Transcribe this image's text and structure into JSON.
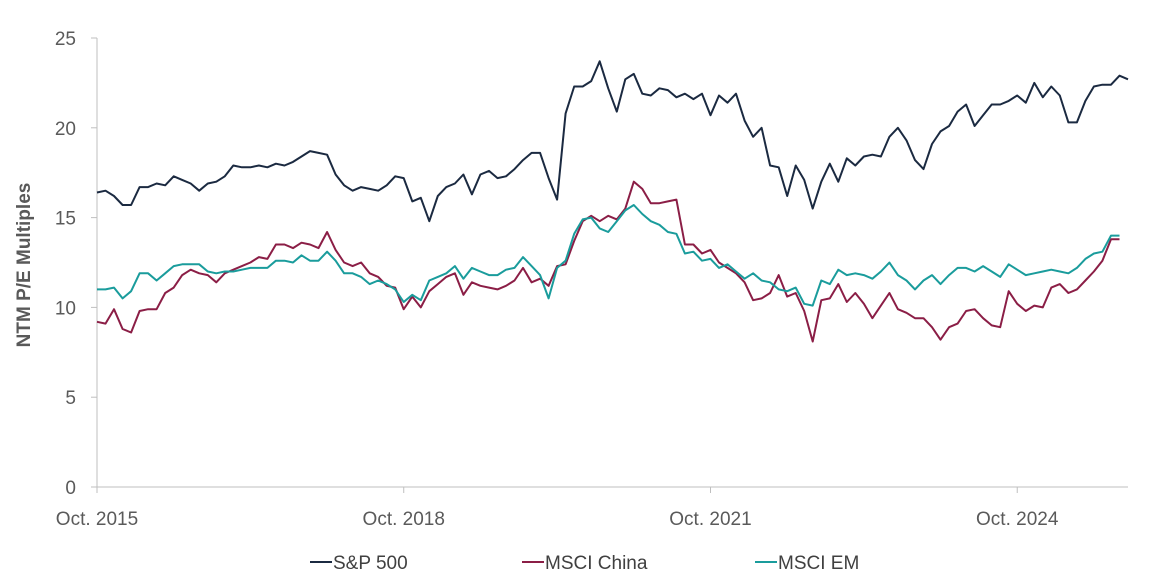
{
  "chart_data": {
    "type": "line",
    "ylabel": "NTM P/E Multiples",
    "xlabel": "",
    "ylim": [
      0,
      25
    ],
    "yticks": [
      0,
      5,
      10,
      15,
      20,
      25
    ],
    "x_start": "Oct. 2015",
    "x_end": "Apr. 2025",
    "xtick_labels": [
      "Oct. 2015",
      "Oct. 2018",
      "Oct. 2021",
      "Oct. 2024"
    ],
    "legend_position": "bottom-center",
    "grid": false,
    "series": [
      {
        "name": "S&P 500",
        "color": "#1b2a41",
        "values": [
          16.4,
          16.5,
          16.2,
          15.7,
          15.7,
          16.7,
          16.7,
          16.9,
          16.8,
          17.3,
          17.1,
          16.9,
          16.5,
          16.9,
          17.0,
          17.3,
          17.9,
          17.8,
          17.8,
          17.9,
          17.8,
          18.0,
          17.9,
          18.1,
          18.4,
          18.7,
          18.6,
          18.5,
          17.4,
          16.8,
          16.5,
          16.7,
          16.6,
          16.5,
          16.8,
          17.3,
          17.2,
          15.9,
          16.1,
          14.8,
          16.2,
          16.7,
          16.9,
          17.4,
          16.3,
          17.4,
          17.6,
          17.2,
          17.3,
          17.7,
          18.2,
          18.6,
          18.6,
          17.2,
          16.0,
          20.8,
          22.3,
          22.3,
          22.6,
          23.7,
          22.2,
          20.9,
          22.7,
          23.0,
          21.9,
          21.8,
          22.2,
          22.1,
          21.7,
          21.9,
          21.6,
          21.9,
          20.7,
          21.8,
          21.4,
          21.9,
          20.4,
          19.5,
          20.0,
          17.9,
          17.8,
          16.2,
          17.9,
          17.1,
          15.5,
          17.0,
          18.0,
          17.0,
          18.3,
          17.9,
          18.4,
          18.5,
          18.4,
          19.5,
          20.0,
          19.3,
          18.2,
          17.7,
          19.1,
          19.8,
          20.1,
          20.9,
          21.3,
          20.1,
          20.7,
          21.3,
          21.3,
          21.5,
          21.8,
          21.4,
          22.5,
          21.7,
          22.3,
          21.8,
          20.3,
          20.3,
          21.5,
          22.3,
          22.4,
          22.4,
          22.9,
          22.7
        ]
      },
      {
        "name": "MSCI China",
        "color": "#8b1e46",
        "values": [
          9.2,
          9.1,
          9.9,
          8.8,
          8.6,
          9.8,
          9.9,
          9.9,
          10.8,
          11.1,
          11.8,
          12.1,
          11.9,
          11.8,
          11.4,
          11.9,
          12.1,
          12.3,
          12.5,
          12.8,
          12.7,
          13.5,
          13.5,
          13.3,
          13.6,
          13.5,
          13.3,
          14.2,
          13.2,
          12.5,
          12.3,
          12.5,
          11.9,
          11.7,
          11.2,
          11.1,
          9.9,
          10.6,
          10.0,
          10.9,
          11.3,
          11.7,
          11.9,
          10.7,
          11.4,
          11.2,
          11.1,
          11.0,
          11.2,
          11.5,
          12.2,
          11.4,
          11.6,
          11.2,
          12.3,
          12.4,
          13.7,
          14.8,
          15.1,
          14.8,
          15.1,
          14.9,
          15.5,
          17.0,
          16.6,
          15.8,
          15.8,
          15.9,
          16.0,
          13.5,
          13.5,
          13.0,
          13.2,
          12.5,
          12.2,
          11.9,
          11.4,
          10.4,
          10.5,
          10.8,
          11.8,
          10.6,
          10.8,
          9.8,
          8.1,
          10.4,
          10.5,
          11.3,
          10.3,
          10.8,
          10.2,
          9.4,
          10.1,
          10.8,
          9.9,
          9.7,
          9.4,
          9.4,
          8.9,
          8.2,
          8.9,
          9.1,
          9.8,
          9.9,
          9.4,
          9.0,
          8.9,
          10.9,
          10.2,
          9.8,
          10.1,
          10.0,
          11.1,
          11.3,
          10.8,
          11.0,
          11.5,
          12.0,
          12.6,
          13.8,
          13.8
        ]
      },
      {
        "name": "MSCI EM",
        "color": "#1a9c9c",
        "values": [
          11.0,
          11.0,
          11.1,
          10.5,
          10.9,
          11.9,
          11.9,
          11.5,
          11.9,
          12.3,
          12.4,
          12.4,
          12.4,
          12.0,
          11.9,
          12.0,
          12.0,
          12.1,
          12.2,
          12.2,
          12.2,
          12.6,
          12.6,
          12.5,
          12.9,
          12.6,
          12.6,
          13.1,
          12.6,
          11.9,
          11.9,
          11.7,
          11.3,
          11.5,
          11.3,
          11.0,
          10.3,
          10.7,
          10.4,
          11.5,
          11.7,
          11.9,
          12.3,
          11.6,
          12.2,
          12.0,
          11.8,
          11.8,
          12.1,
          12.2,
          12.8,
          12.3,
          11.8,
          10.5,
          12.2,
          12.6,
          14.1,
          14.9,
          15.0,
          14.4,
          14.2,
          14.8,
          15.4,
          15.7,
          15.2,
          14.8,
          14.6,
          14.2,
          14.1,
          13.0,
          13.1,
          12.6,
          12.7,
          12.2,
          12.4,
          12.0,
          11.6,
          11.9,
          11.5,
          11.4,
          11.0,
          10.9,
          11.1,
          10.2,
          10.1,
          11.5,
          11.3,
          12.1,
          11.8,
          11.9,
          11.8,
          11.6,
          12.0,
          12.5,
          11.8,
          11.5,
          11.0,
          11.5,
          11.8,
          11.3,
          11.8,
          12.2,
          12.2,
          12.0,
          12.3,
          12.0,
          11.7,
          12.4,
          12.1,
          11.8,
          11.9,
          12.0,
          12.1,
          12.0,
          11.9,
          12.2,
          12.7,
          13.0,
          13.1,
          14.0,
          14.0
        ]
      }
    ]
  }
}
